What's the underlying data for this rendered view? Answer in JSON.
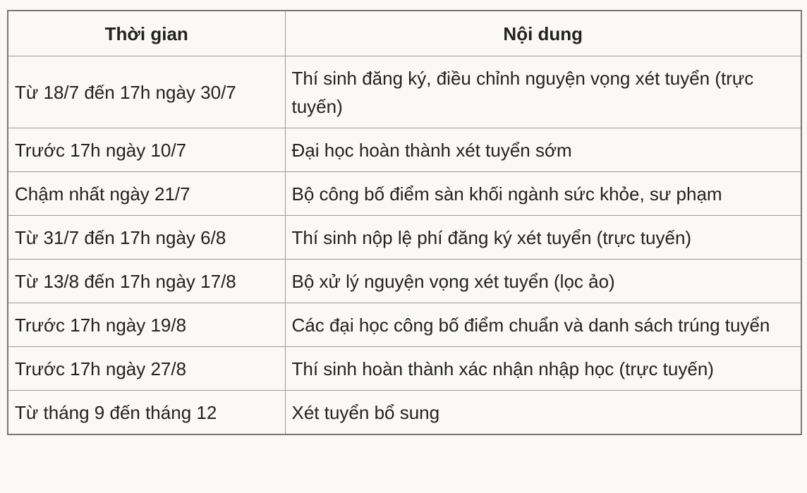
{
  "table": {
    "headers": [
      "Thời gian",
      "Nội dung"
    ],
    "rows": [
      [
        "Từ 18/7 đến 17h ngày 30/7",
        "Thí sinh đăng ký, điều chỉnh nguyện vọng xét tuyển (trực tuyến)"
      ],
      [
        "Trước 17h ngày 10/7",
        "Đại học hoàn thành xét tuyển sớm"
      ],
      [
        "Chậm nhất ngày 21/7",
        "Bộ công bố điểm sàn khối ngành sức khỏe, sư phạm"
      ],
      [
        "Từ 31/7 đến 17h ngày 6/8",
        "Thí sinh nộp lệ phí đăng ký xét tuyển (trực tuyến)"
      ],
      [
        "Từ 13/8 đến 17h ngày 17/8",
        "Bộ xử lý nguyện vọng xét tuyển (lọc ảo)"
      ],
      [
        "Trước 17h ngày 19/8",
        "Các đại học công bố điểm chuẩn và danh sách trúng tuyển"
      ],
      [
        "Trước 17h ngày 27/8",
        "Thí sinh hoàn thành xác nhận nhập học (trực tuyến)"
      ],
      [
        "Từ tháng 9 đến tháng 12",
        "Xét tuyển bổ sung"
      ]
    ]
  }
}
